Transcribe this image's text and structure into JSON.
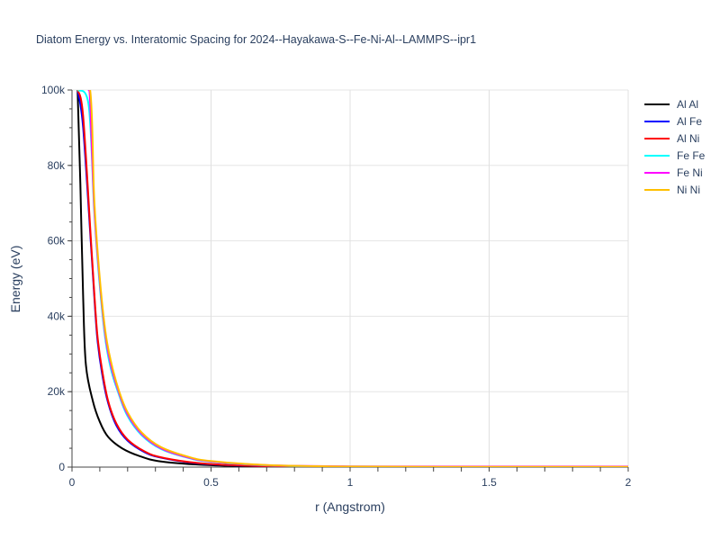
{
  "chart": {
    "title": "Diatom Energy vs. Interatomic Spacing for 2024--Hayakawa-S--Fe-Ni-Al--LAMMPS--ipr1"
  },
  "legend": {
    "items": [
      {
        "label": "Al Al",
        "color": "#000000"
      },
      {
        "label": "Al Fe",
        "color": "#0000ff"
      },
      {
        "label": "Al Ni",
        "color": "#ff0000"
      },
      {
        "label": "Fe Fe",
        "color": "#00ffff"
      },
      {
        "label": "Fe Ni",
        "color": "#ff00ff"
      },
      {
        "label": "Ni Ni",
        "color": "#ffbf00"
      }
    ]
  },
  "chart_data": {
    "type": "line",
    "title": "Diatom Energy vs. Interatomic Spacing for 2024--Hayakawa-S--Fe-Ni-Al--LAMMPS--ipr1",
    "xlabel": "r (Angstrom)",
    "ylabel": "Energy (eV)",
    "xlim": [
      0,
      2
    ],
    "ylim": [
      0,
      100000
    ],
    "xticks": [
      "0",
      "0.5",
      "1",
      "1.5",
      "2"
    ],
    "yticks": [
      "0",
      "20k",
      "40k",
      "60k",
      "80k",
      "100k"
    ],
    "grid": true,
    "legend_position": "right",
    "series": [
      {
        "name": "Al Al",
        "color": "#000000",
        "x": [
          0.02,
          0.03,
          0.04,
          0.05,
          0.075,
          0.1,
          0.13,
          0.18,
          0.24,
          0.32,
          0.5,
          0.7,
          1.0,
          1.5,
          2.0
        ],
        "y": [
          100000,
          75000,
          45000,
          27000,
          17500,
          12000,
          8000,
          5000,
          3000,
          1500,
          500,
          150,
          50,
          20,
          10
        ]
      },
      {
        "name": "Al Fe",
        "color": "#0000ff",
        "x": [
          0.02,
          0.04,
          0.07,
          0.09,
          0.11,
          0.13,
          0.16,
          0.2,
          0.26,
          0.32,
          0.45,
          0.6,
          0.8,
          1.0,
          1.5,
          2.0
        ],
        "y": [
          100000,
          90000,
          57000,
          35000,
          24000,
          17000,
          11000,
          7000,
          4000,
          2500,
          1000,
          400,
          150,
          80,
          40,
          20
        ]
      },
      {
        "name": "Al Ni",
        "color": "#ff0000",
        "x": [
          0.02,
          0.04,
          0.07,
          0.09,
          0.11,
          0.13,
          0.16,
          0.2,
          0.26,
          0.32,
          0.45,
          0.6,
          0.8,
          1.0,
          1.5,
          2.0
        ],
        "y": [
          100000,
          93000,
          58000,
          36000,
          25000,
          17500,
          11500,
          7300,
          4200,
          2600,
          1100,
          450,
          160,
          90,
          45,
          25
        ]
      },
      {
        "name": "Fe Fe",
        "color": "#00ffff",
        "x": [
          0.02,
          0.06,
          0.08,
          0.1,
          0.12,
          0.14,
          0.17,
          0.2,
          0.25,
          0.32,
          0.42,
          0.5,
          0.7,
          1.0,
          1.5,
          2.0
        ],
        "y": [
          100000,
          96000,
          68000,
          48000,
          34000,
          26000,
          19000,
          13500,
          8500,
          4800,
          2400,
          1400,
          450,
          150,
          60,
          40
        ]
      },
      {
        "name": "Fe Ni",
        "color": "#ff00ff",
        "x": [
          0.06,
          0.065,
          0.08,
          0.1,
          0.12,
          0.14,
          0.17,
          0.2,
          0.25,
          0.32,
          0.42,
          0.5,
          0.7,
          1.0,
          1.5,
          2.0
        ],
        "y": [
          100000,
          97000,
          69000,
          49000,
          35000,
          27000,
          19500,
          14000,
          8800,
          5000,
          2500,
          1500,
          500,
          200,
          150,
          150
        ]
      },
      {
        "name": "Ni Ni",
        "color": "#ffbf00",
        "x": [
          0.02,
          0.065,
          0.08,
          0.1,
          0.12,
          0.14,
          0.17,
          0.2,
          0.25,
          0.32,
          0.42,
          0.5,
          0.7,
          1.0,
          1.5,
          2.0
        ],
        "y": [
          100000,
          100000,
          71000,
          50000,
          36000,
          28000,
          20000,
          14500,
          9200,
          5300,
          2700,
          1600,
          550,
          150,
          60,
          40
        ]
      }
    ]
  }
}
